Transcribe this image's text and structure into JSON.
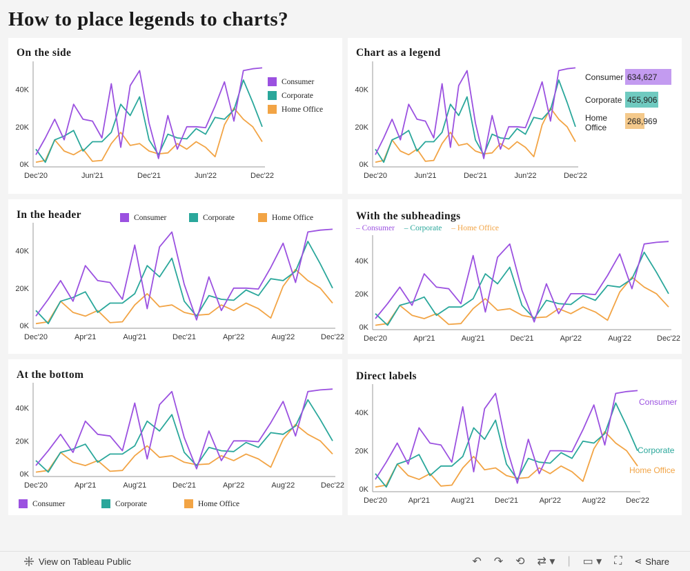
{
  "page_title": "How to place legends to charts?",
  "colors": {
    "Consumer": "#9b51e0",
    "Corporate": "#2aa79b",
    "Home Office": "#f2a445",
    "consumer_bar": "#c39bf0",
    "corporate_bar": "#6fcac0",
    "homeoffice_bar": "#f4c98b"
  },
  "legend": {
    "consumer": "Consumer",
    "corporate": "Corporate",
    "home_office": "Home Office"
  },
  "subheading_legend": {
    "consumer": "– Consumer",
    "corporate": "– Corporate",
    "home_office": "– Home Office"
  },
  "bar_legend": {
    "consumer_label": "Consumer",
    "consumer_value": "634,627",
    "corporate_label": "Corporate",
    "corporate_value": "455,906",
    "home_office_label_1": "Home",
    "home_office_label_2": "Office",
    "home_office_value": "268,969"
  },
  "direct_labels": {
    "consumer": "Consumer",
    "corporate": "Corporate",
    "home_office": "Home Office"
  },
  "panels": [
    {
      "title": "On the side",
      "xticks": [
        "Dec'20",
        "Jun'21",
        "Dec'21",
        "Jun'22",
        "Dec'22"
      ]
    },
    {
      "title": "Chart as a legend",
      "xticks": [
        "Dec'20",
        "Jun'21",
        "Dec'21",
        "Jun'22",
        "Dec'22"
      ]
    },
    {
      "title": "In the header",
      "xticks": [
        "Dec'20",
        "Apr'21",
        "Aug'21",
        "Dec'21",
        "Apr'22",
        "Aug'22",
        "Dec'22"
      ]
    },
    {
      "title": "With the subheadings",
      "xticks": [
        "Dec'20",
        "Apr'21",
        "Aug'21",
        "Dec'21",
        "Apr'22",
        "Aug'22",
        "Dec'22"
      ]
    },
    {
      "title": "At the bottom",
      "xticks": [
        "Dec'20",
        "Apr'21",
        "Aug'21",
        "Dec'21",
        "Apr'22",
        "Aug'22",
        "Dec'22"
      ]
    },
    {
      "title": "Direct labels",
      "xticks": [
        "Dec'20",
        "Apr'21",
        "Aug'21",
        "Dec'21",
        "Apr'22",
        "Aug'22",
        "Dec'22"
      ]
    }
  ],
  "chart_data": {
    "type": "line",
    "x": [
      "Dec'20",
      "Jan'21",
      "Feb'21",
      "Mar'21",
      "Apr'21",
      "May'21",
      "Jun'21",
      "Jul'21",
      "Aug'21",
      "Sep'21",
      "Oct'21",
      "Nov'21",
      "Dec'21",
      "Jan'22",
      "Feb'22",
      "Mar'22",
      "Apr'22",
      "May'22",
      "Jun'22",
      "Jul'22",
      "Aug'22",
      "Sep'22",
      "Oct'22",
      "Nov'22",
      "Dec'22"
    ],
    "yticks": [
      "0K",
      "20K",
      "40K"
    ],
    "ylim": [
      0,
      52000
    ],
    "series": [
      {
        "name": "Consumer",
        "values": [
          5000,
          14000,
          24000,
          13000,
          32000,
          24000,
          23000,
          14000,
          43000,
          9000,
          42000,
          50000,
          22000,
          3000,
          26000,
          8000,
          20000,
          20000,
          19500,
          31000,
          44000,
          23000,
          50000,
          51000,
          51500
        ]
      },
      {
        "name": "Corporate",
        "values": [
          8000,
          1000,
          13000,
          15000,
          18000,
          7000,
          12000,
          12000,
          17000,
          32000,
          26000,
          36000,
          13000,
          5000,
          16000,
          14000,
          13500,
          19000,
          16000,
          25000,
          24000,
          29000,
          45000,
          33000,
          20000
        ]
      },
      {
        "name": "Home Office",
        "values": [
          1000,
          2000,
          13000,
          7000,
          5000,
          8000,
          1500,
          2000,
          11000,
          17000,
          10000,
          11000,
          7000,
          5500,
          6000,
          11000,
          8000,
          12000,
          9000,
          4000,
          21000,
          30000,
          24000,
          20000,
          12000
        ]
      }
    ]
  }
}
